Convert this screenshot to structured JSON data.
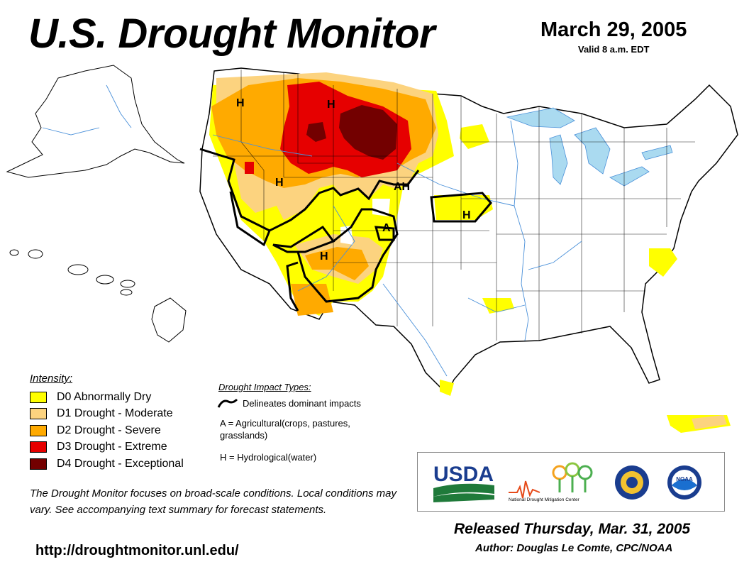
{
  "header": {
    "title": "U.S. Drought Monitor",
    "date": "March 29, 2005",
    "valid": "Valid 8 a.m. EDT"
  },
  "map": {
    "region_labels": [
      "H",
      "H",
      "H",
      "AH",
      "H",
      "A",
      "H"
    ]
  },
  "legend": {
    "title": "Intensity:",
    "items": [
      {
        "label": "D0 Abnormally Dry",
        "color": "#ffff00"
      },
      {
        "label": "D1 Drought - Moderate",
        "color": "#fcd37f"
      },
      {
        "label": "D2 Drought - Severe",
        "color": "#ffaa00"
      },
      {
        "label": "D3 Drought - Extreme",
        "color": "#e60000"
      },
      {
        "label": "D4 Drought - Exceptional",
        "color": "#730000"
      }
    ]
  },
  "impacts": {
    "title": "Drought Impact Types:",
    "delineates": "Delineates dominant impacts",
    "agricultural": "A = Agricultural(crops, pastures, grasslands)",
    "hydrological": "H = Hydrological(water)"
  },
  "note": "The Drought Monitor focuses on broad-scale conditions. Local conditions may vary. See accompanying text summary for forecast statements.",
  "url": "http://droughtmonitor.unl.edu/",
  "logos": {
    "usda": "USDA",
    "ndmc": "National Drought Mitigation Center",
    "noaa": "NOAA"
  },
  "footer": {
    "released": "Released Thursday, Mar. 31, 2005",
    "author": "Author: Douglas Le Comte, CPC/NOAA"
  },
  "colors": {
    "water": "#aadaf0",
    "river": "#4a90d9",
    "boundary": "#000000"
  }
}
